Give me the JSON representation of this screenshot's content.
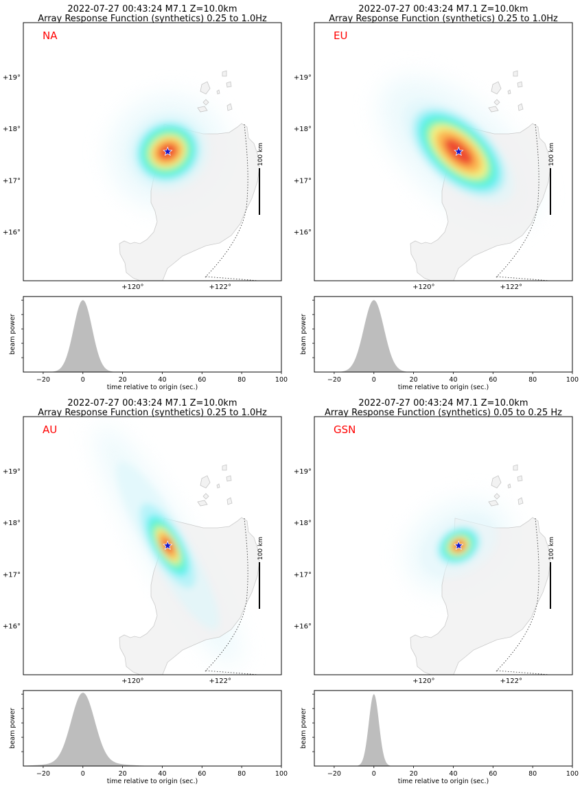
{
  "panels": [
    {
      "title_line1": "2022-07-27 00:43:24 M7.1 Z=10.0km",
      "title_line2": "Array Response Function (synthetics) 0.25 to 1.0Hz",
      "array_label": "NA",
      "scale_label": "100 km",
      "lat_ticks": [
        "+19°",
        "+18°",
        "+17°",
        "+16°"
      ],
      "lon_ticks": [
        "+120°",
        "+122°"
      ],
      "map_data": {
        "type": "heatmap",
        "peak_lon": 120.8,
        "peak_lat": 17.55,
        "lat_range": [
          15.05,
          20.05
        ],
        "lon_range": [
          117.5,
          123.4
        ],
        "lobe": "ellipse, slight NW-SE tilt"
      }
    },
    {
      "title_line1": "2022-07-27 00:43:24 M7.1 Z=10.0km",
      "title_line2": "Array Response Function (synthetics) 0.25 to 1.0Hz",
      "array_label": "EU",
      "scale_label": "100 km",
      "lat_ticks": [
        "+19°",
        "+18°",
        "+17°",
        "+16°"
      ],
      "lon_ticks": [
        "+120°",
        "+122°"
      ],
      "map_data": {
        "type": "heatmap",
        "peak_lon": 120.8,
        "peak_lat": 17.55,
        "lat_range": [
          15.05,
          20.05
        ],
        "lon_range": [
          117.5,
          123.4
        ],
        "lobe": "elongated NW-SE"
      }
    },
    {
      "title_line1": "2022-07-27 00:43:24 M7.1 Z=10.0km",
      "title_line2": "Array Response Function (synthetics) 0.25 to 1.0Hz",
      "array_label": "AU",
      "scale_label": "100 km",
      "lat_ticks": [
        "+19°",
        "+18°",
        "+17°",
        "+16°"
      ],
      "lon_ticks": [
        "+120°",
        "+122°"
      ],
      "map_data": {
        "type": "heatmap",
        "peak_lon": 120.8,
        "peak_lat": 17.55,
        "lat_range": [
          15.05,
          20.05
        ],
        "lon_range": [
          117.5,
          123.4
        ],
        "lobe": "narrow, elongated NNW-SSE"
      }
    },
    {
      "title_line1": "2022-07-27 00:43:24 M7.1 Z=10.0km",
      "title_line2": "Array Response Function (synthetics) 0.05 to 0.25 Hz",
      "array_label": "GSN",
      "scale_label": "100 km",
      "lat_ticks": [
        "+19°",
        "+18°",
        "+17°",
        "+16°"
      ],
      "lon_ticks": [
        "+120°",
        "+122°"
      ],
      "map_data": {
        "type": "heatmap",
        "peak_lon": 120.8,
        "peak_lat": 17.55,
        "lat_range": [
          15.05,
          20.05
        ],
        "lon_range": [
          117.5,
          123.4
        ],
        "lobe": "small compact ellipse"
      }
    }
  ],
  "chart_data": [
    {
      "type": "area",
      "array": "NA",
      "ylabel": "beam power",
      "xlabel": "time relative to origin (sec.)",
      "xlim": [
        -30,
        100
      ],
      "ylim": [
        0,
        1.05
      ],
      "xticks": [
        -20,
        0,
        20,
        40,
        60,
        80,
        100
      ],
      "color": "#bdbdbd",
      "peak_time": 0,
      "peak_value": 1.0,
      "halfwidth_sec": 5.5
    },
    {
      "type": "area",
      "array": "EU",
      "ylabel": "beam power",
      "xlabel": "time relative to origin (sec.)",
      "xlim": [
        -30,
        100
      ],
      "ylim": [
        0,
        1.05
      ],
      "xticks": [
        -20,
        0,
        20,
        40,
        60,
        80,
        100
      ],
      "color": "#bdbdbd",
      "peak_time": 0,
      "peak_value": 1.0,
      "halfwidth_sec": 6.0
    },
    {
      "type": "area",
      "array": "AU",
      "ylabel": "beam power",
      "xlabel": "time relative to origin (sec.)",
      "xlim": [
        -30,
        100
      ],
      "ylim": [
        0,
        1.05
      ],
      "xticks": [
        -20,
        0,
        20,
        40,
        60,
        80,
        100
      ],
      "color": "#bdbdbd",
      "peak_time": 0,
      "peak_value": 1.0,
      "halfwidth_sec": 7.0
    },
    {
      "type": "area",
      "array": "GSN",
      "ylabel": "beam power",
      "xlabel": "time relative to origin (sec.)",
      "xlim": [
        -30,
        100
      ],
      "ylim": [
        0,
        1.05
      ],
      "xticks": [
        -20,
        0,
        20,
        40,
        60,
        80,
        100
      ],
      "color": "#bdbdbd",
      "peak_time": 0,
      "peak_value": 1.0,
      "halfwidth_sec": 3.0
    }
  ],
  "colors": {
    "label": "#ff0000",
    "star": "#1515c8",
    "land": "#f2f2f2",
    "coast": "#c4c4c4",
    "trace": "#bdbdbd"
  }
}
